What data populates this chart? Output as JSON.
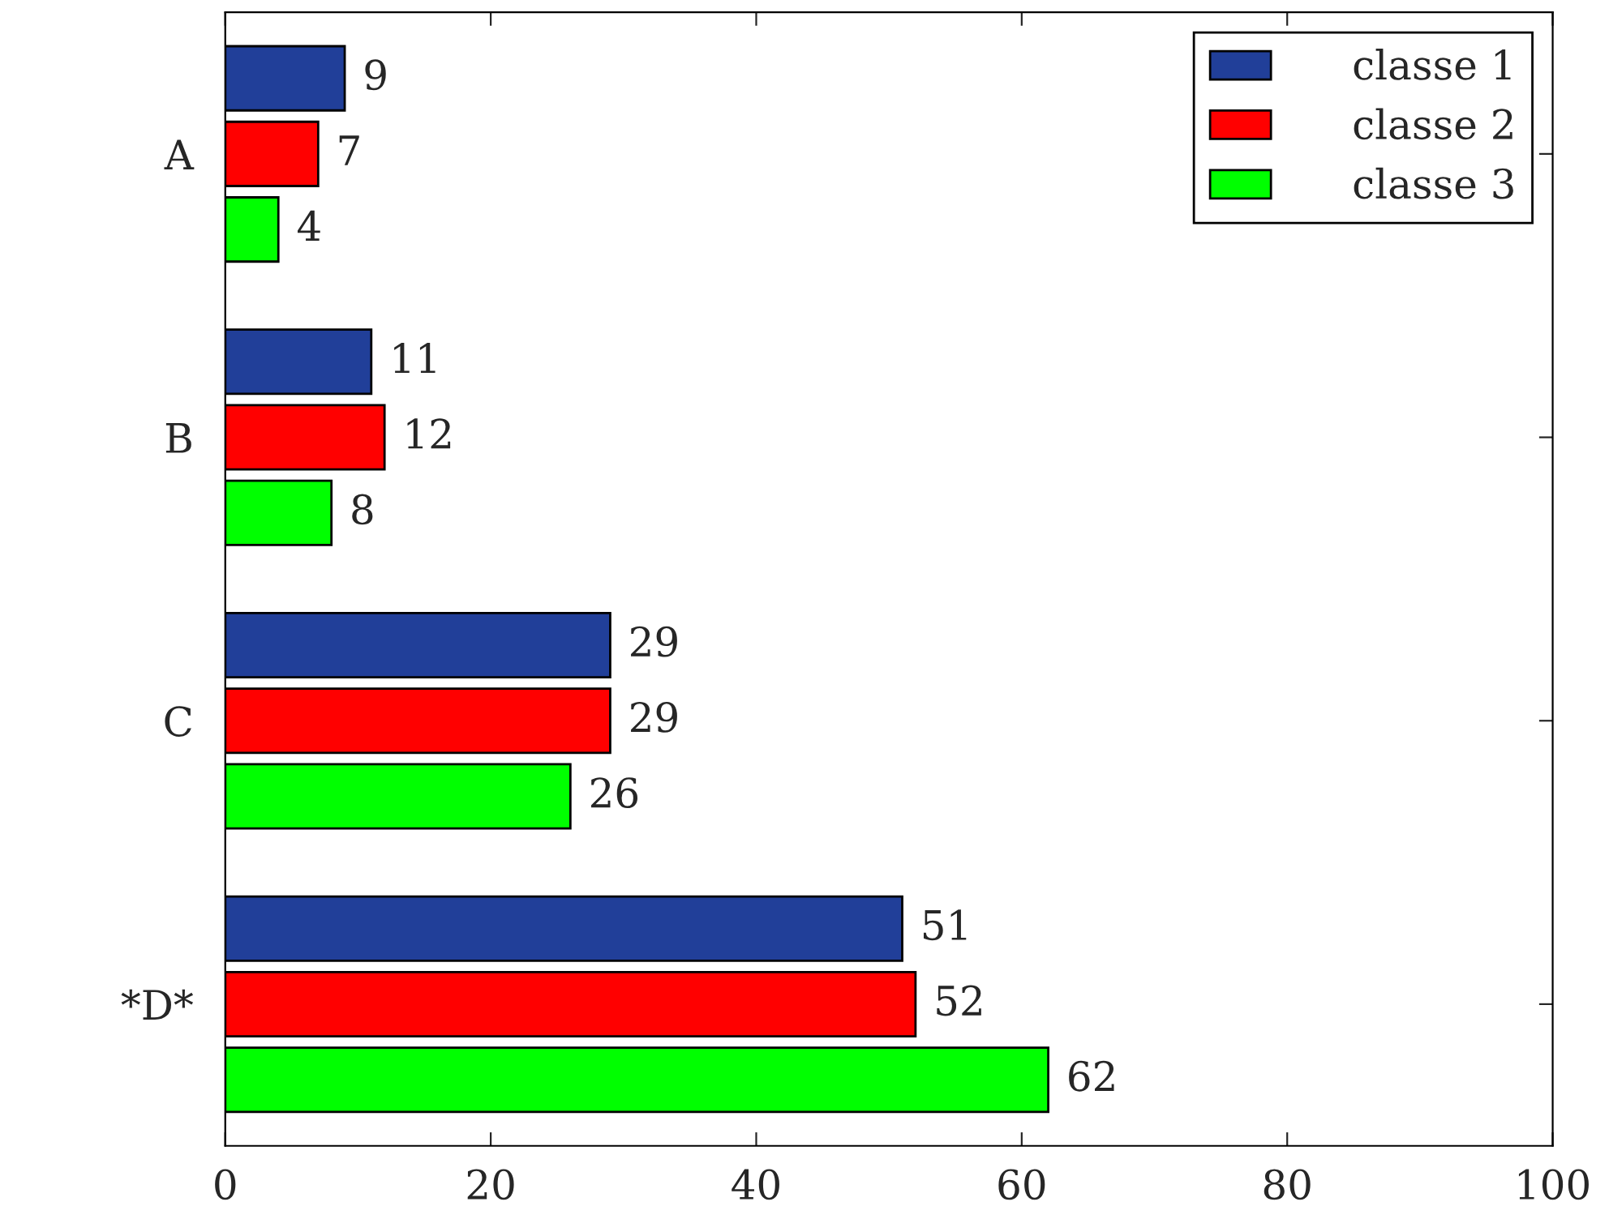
{
  "chart_data": {
    "type": "bar",
    "orientation": "horizontal",
    "categories": [
      "A",
      "B",
      "C",
      "*D*"
    ],
    "series": [
      {
        "name": "classe 1",
        "color": "#213f99",
        "values": [
          9,
          11,
          29,
          51
        ]
      },
      {
        "name": "classe 2",
        "color": "#ff0000",
        "values": [
          7,
          12,
          29,
          52
        ]
      },
      {
        "name": "classe 3",
        "color": "#00ff00",
        "values": [
          4,
          8,
          26,
          62
        ]
      }
    ],
    "xlim": [
      0,
      100
    ],
    "xticks": [
      0,
      20,
      40,
      60,
      80,
      100
    ],
    "data_labels": true,
    "legend": "top right",
    "grid": false
  }
}
